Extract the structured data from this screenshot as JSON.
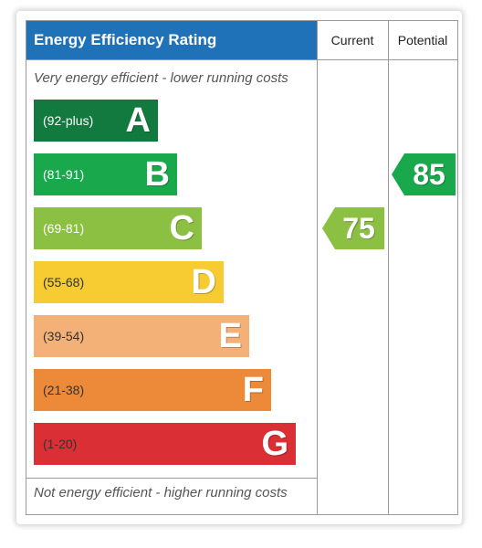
{
  "chart_data": {
    "type": "table",
    "title": "Energy Efficiency Rating",
    "columns": [
      "Current",
      "Potential"
    ],
    "top_caption": "Very energy efficient - lower running costs",
    "bottom_caption": "Not energy efficient - higher running costs",
    "bands": [
      {
        "range": "(92-plus)",
        "letter": "A",
        "color": "#127a3e",
        "length": 0.45
      },
      {
        "range": "(81-91)",
        "letter": "B",
        "color": "#1aa84c",
        "length": 0.52
      },
      {
        "range": "(69-81)",
        "letter": "C",
        "color": "#8cc043",
        "length": 0.61
      },
      {
        "range": "(55-68)",
        "letter": "D",
        "color": "#f6cc32",
        "length": 0.69
      },
      {
        "range": "(39-54)",
        "letter": "E",
        "color": "#f3b077",
        "length": 0.78
      },
      {
        "range": "(21-38)",
        "letter": "F",
        "color": "#ec8a3a",
        "length": 0.86
      },
      {
        "range": "(1-20)",
        "letter": "G",
        "color": "#da2f35",
        "length": 0.95
      }
    ],
    "current": {
      "value": "75",
      "band": "C",
      "color": "#8cc043"
    },
    "potential": {
      "value": "85",
      "band": "B",
      "color": "#1aa84c"
    }
  }
}
